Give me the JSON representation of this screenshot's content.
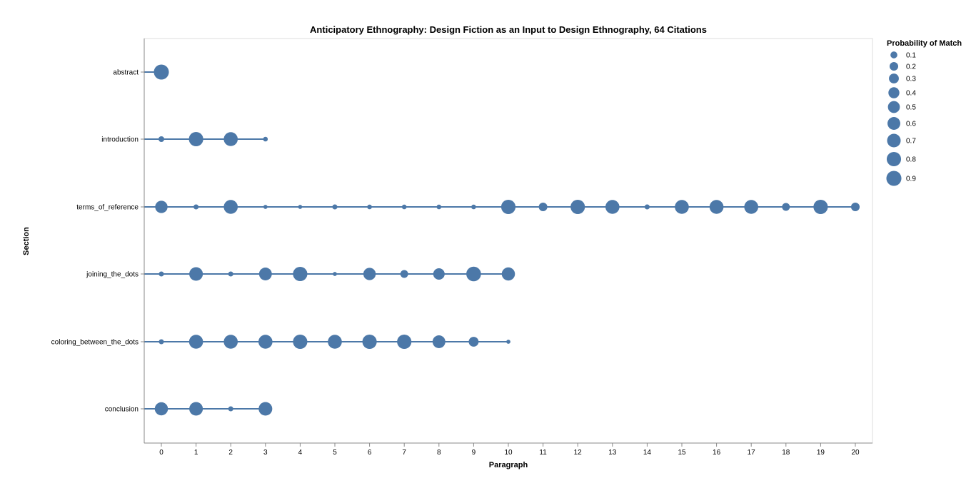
{
  "chart_data": {
    "type": "scatter",
    "title": "Anticipatory Ethnography: Design Fiction as an Input to Design Ethnography, 64 Citations",
    "xlabel": "Paragraph",
    "ylabel": "Section",
    "xlim": [
      0,
      20
    ],
    "x_ticks": [
      0,
      1,
      2,
      3,
      4,
      5,
      6,
      7,
      8,
      9,
      10,
      11,
      12,
      13,
      14,
      15,
      16,
      17,
      18,
      19,
      20
    ],
    "categories": [
      "abstract",
      "introduction",
      "terms_of_reference",
      "joining_the_dots",
      "coloring_between_the_dots",
      "conclusion"
    ],
    "grid": false,
    "color": "#4c78a8",
    "size_legend": {
      "title": "Probability of Match",
      "position": "top-right",
      "values": [
        "0.1",
        "0.2",
        "0.3",
        "0.4",
        "0.5",
        "0.6",
        "0.7",
        "0.8",
        "0.9"
      ]
    },
    "series": [
      {
        "category": "abstract",
        "points": [
          [
            0,
            0.9
          ]
        ]
      },
      {
        "category": "introduction",
        "points": [
          [
            0,
            0.05
          ],
          [
            1,
            0.8
          ],
          [
            2,
            0.75
          ],
          [
            3,
            0.02
          ]
        ]
      },
      {
        "category": "terms_of_reference",
        "points": [
          [
            0,
            0.55
          ],
          [
            1,
            0.03
          ],
          [
            2,
            0.75
          ],
          [
            3,
            0.01
          ],
          [
            4,
            0.01
          ],
          [
            5,
            0.03
          ],
          [
            6,
            0.02
          ],
          [
            7,
            0.02
          ],
          [
            8,
            0.02
          ],
          [
            9,
            0.02
          ],
          [
            10,
            0.8
          ],
          [
            11,
            0.2
          ],
          [
            12,
            0.8
          ],
          [
            13,
            0.75
          ],
          [
            14,
            0.03
          ],
          [
            15,
            0.75
          ],
          [
            16,
            0.75
          ],
          [
            17,
            0.75
          ],
          [
            18,
            0.15
          ],
          [
            19,
            0.8
          ],
          [
            20,
            0.2
          ]
        ]
      },
      {
        "category": "joining_the_dots",
        "points": [
          [
            0,
            0.03
          ],
          [
            1,
            0.7
          ],
          [
            2,
            0.03
          ],
          [
            3,
            0.6
          ],
          [
            4,
            0.8
          ],
          [
            5,
            0.01
          ],
          [
            6,
            0.55
          ],
          [
            7,
            0.15
          ],
          [
            8,
            0.45
          ],
          [
            9,
            0.85
          ],
          [
            10,
            0.65
          ]
        ]
      },
      {
        "category": "coloring_between_the_dots",
        "points": [
          [
            0,
            0.03
          ],
          [
            1,
            0.75
          ],
          [
            2,
            0.75
          ],
          [
            3,
            0.75
          ],
          [
            4,
            0.8
          ],
          [
            5,
            0.75
          ],
          [
            6,
            0.8
          ],
          [
            7,
            0.8
          ],
          [
            8,
            0.6
          ],
          [
            9,
            0.3
          ],
          [
            10,
            0.01
          ]
        ]
      },
      {
        "category": "conclusion",
        "points": [
          [
            0,
            0.65
          ],
          [
            1,
            0.7
          ],
          [
            2,
            0.03
          ],
          [
            3,
            0.7
          ]
        ]
      }
    ]
  }
}
